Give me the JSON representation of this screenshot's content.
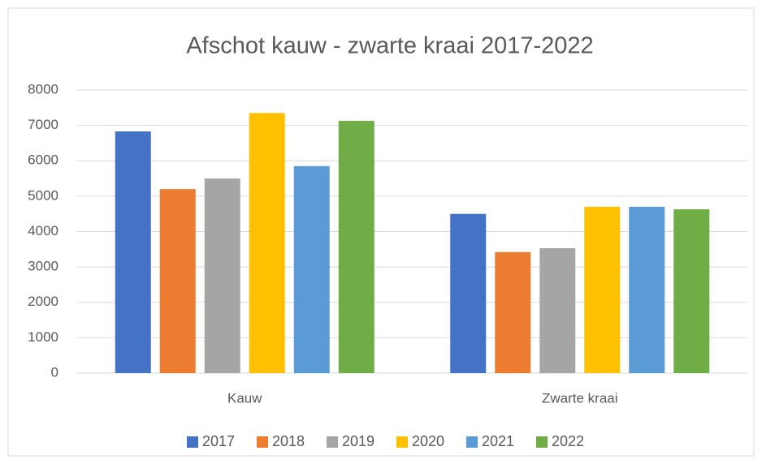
{
  "chart_data": {
    "type": "bar",
    "title": "Afschot kauw - zwarte kraai 2017-2022",
    "categories": [
      "Kauw",
      "Zwarte kraai"
    ],
    "series": [
      {
        "name": "2017",
        "color": "#4472c4",
        "values": [
          6830,
          4500
        ]
      },
      {
        "name": "2018",
        "color": "#ed7d31",
        "values": [
          5200,
          3420
        ]
      },
      {
        "name": "2019",
        "color": "#a5a5a5",
        "values": [
          5500,
          3530
        ]
      },
      {
        "name": "2020",
        "color": "#ffc000",
        "values": [
          7350,
          4700
        ]
      },
      {
        "name": "2021",
        "color": "#5b9bd5",
        "values": [
          5850,
          4700
        ]
      },
      {
        "name": "2022",
        "color": "#70ad47",
        "values": [
          7130,
          4630
        ]
      }
    ],
    "ylim": [
      0,
      8000
    ],
    "yticks": [
      0,
      1000,
      2000,
      3000,
      4000,
      5000,
      6000,
      7000,
      8000
    ],
    "grid": true,
    "legend": "bottom"
  }
}
